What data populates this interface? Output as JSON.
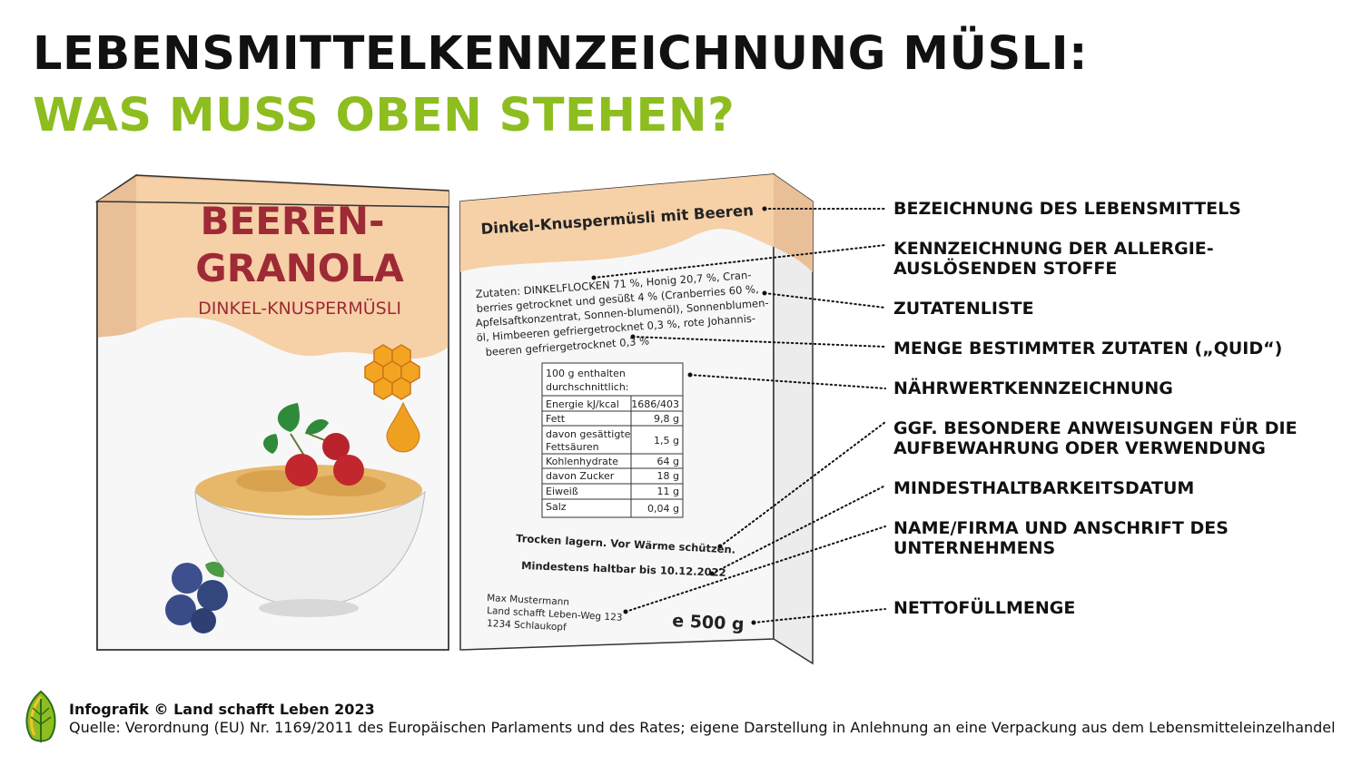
{
  "title": {
    "line1": "LEBENSMITTELKENNZEICHNUNG MÜSLI:",
    "line2": "WAS MUSS OBEN STEHEN?",
    "line2_color": "#8dbd1f"
  },
  "front_box": {
    "product_line1": "BEEREN-",
    "product_line2": "GRANOLA",
    "subtitle": "DINKEL-KNUSPERMÜSLI",
    "accent_color": "#9e2a36",
    "band_color": "#f6d0a7"
  },
  "back_box": {
    "name": "Dinkel-Knuspermüsli mit Beeren",
    "ingredients": [
      "Zutaten: DINKELFLOCKEN 71 %, Honig 20,7 %, Cran-",
      "berries getrocknet und gesüßt 4 % (Cranberries 60 %,",
      "Apfelsaftkonzentrat, Sonnen-blumenöl), Sonnenblumen-",
      "öl, Himbeeren gefriergetrocknet 0,3 %, rote Johannis-",
      "beeren gefriergetrocknet 0,3 %"
    ],
    "nutrition": {
      "header1": "100 g enthalten",
      "header2": "durchschnittlich:",
      "rows": [
        {
          "label": "Energie kJ/kcal",
          "value": "1686/403"
        },
        {
          "label": "Fett",
          "value": "9,8 g"
        },
        {
          "label": "davon gesättigte",
          "label2": "Fettsäuren",
          "value": "1,5 g"
        },
        {
          "label": "Kohlenhydrate",
          "value": "64 g"
        },
        {
          "label": "davon Zucker",
          "value": "18 g"
        },
        {
          "label": "Eiweiß",
          "value": "11 g"
        },
        {
          "label": "Salz",
          "value": "0,04 g"
        }
      ]
    },
    "storage": "Trocken lagern. Vor Wärme schützen.",
    "best_before": "Mindestens haltbar bis 10.12.2022",
    "address": [
      "Max Mustermann",
      "Land schafft Leben-Weg 123",
      "1234 Schlaukopf"
    ],
    "net_quantity": "e 500 g"
  },
  "labels": [
    {
      "line1": "BEZEICHNUNG DES LEBENSMITTELS"
    },
    {
      "line1": "KENNZEICHNUNG DER ALLERGIE-",
      "line2": "AUSLÖSENDEN STOFFE"
    },
    {
      "line1": "ZUTATENLISTE"
    },
    {
      "line1": "MENGE BESTIMMTER ZUTATEN („QUID“)"
    },
    {
      "line1": "NÄHRWERTKENNZEICHNUNG"
    },
    {
      "line1": "GGF. BESONDERE ANWEISUNGEN FÜR DIE",
      "line2": "AUFBEWAHRUNG ODER VERWENDUNG"
    },
    {
      "line1": "MINDESTHALTBARKEITSDATUM"
    },
    {
      "line1": "NAME/FIRMA UND ANSCHRIFT DES",
      "line2": "UNTERNEHMENS"
    },
    {
      "line1": "NETTOFÜLLMENGE"
    }
  ],
  "footer": {
    "credit": "Infografik © Land schafft Leben 2023",
    "source": "Quelle: Verordnung (EU) Nr. 1169/2011 des Europäischen Parlaments und des Rates; eigene Darstellung in Anlehnung an eine Verpackung aus dem Lebensmitteleinzelhandel"
  }
}
